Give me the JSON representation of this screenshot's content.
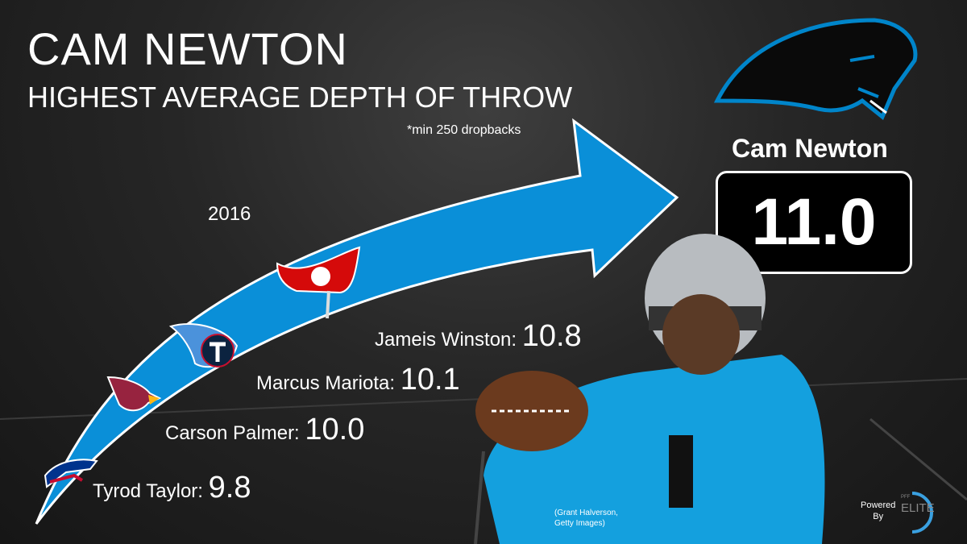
{
  "header": {
    "title": "CAM NEWTON",
    "subtitle": "HIGHEST AVERAGE DEPTH OF THROW",
    "note": "*min 250 dropbacks",
    "season": "2016"
  },
  "players": [
    {
      "name": "Tyrod Taylor:",
      "value": "9.8",
      "team_icon": "bills-logo"
    },
    {
      "name": "Carson Palmer:",
      "value": "10.0",
      "team_icon": "cardinals-logo"
    },
    {
      "name": "Marcus Mariota:",
      "value": "10.1",
      "team_icon": "titans-logo"
    },
    {
      "name": "Jameis Winston:",
      "value": "10.8",
      "team_icon": "buccaneers-logo"
    }
  ],
  "leader": {
    "name": "Cam Newton",
    "value": "11.0",
    "team_icon": "panthers-logo"
  },
  "credit": {
    "line1": "(Grant Halverson,",
    "line2": "Getty Images)"
  },
  "branding": {
    "powered": "Powered",
    "by": "By",
    "pff": "PFF",
    "elite": "ELITE"
  },
  "colors": {
    "arrow": "#0a8fd8",
    "panthers_blue": "#0085ca",
    "background": "#222222"
  }
}
